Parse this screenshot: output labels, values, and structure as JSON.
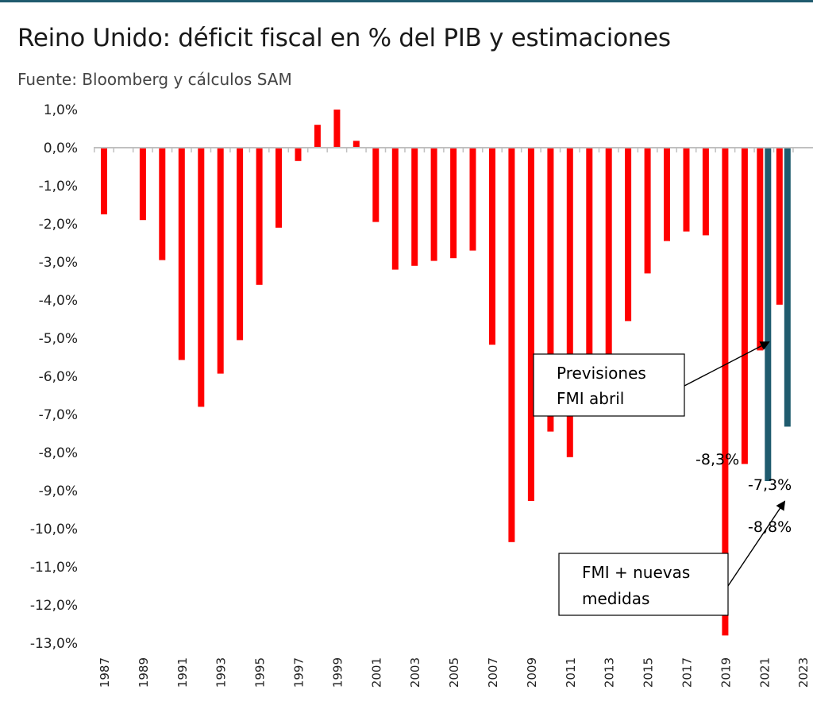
{
  "chart_data": {
    "type": "bar",
    "title": "Reino Unido: déficit fiscal en % del PIB y estimaciones",
    "subtitle": "Fuente: Bloomberg y cálculos SAM",
    "ylim": [
      -13.0,
      1.0
    ],
    "yticks": [
      "1,0%",
      "0,0%",
      "-1,0%",
      "-2,0%",
      "-3,0%",
      "-4,0%",
      "-5,0%",
      "-6,0%",
      "-7,0%",
      "-8,0%",
      "-9,0%",
      "-10,0%",
      "-11,0%",
      "-12,0%",
      "-13,0%"
    ],
    "grid": false,
    "categories": [
      "1987",
      "1988",
      "1989",
      "1990",
      "1991",
      "1992",
      "1993",
      "1994",
      "1995",
      "1996",
      "1997",
      "1998",
      "1999",
      "2000",
      "2001",
      "2002",
      "2003",
      "2004",
      "2005",
      "2006",
      "2007",
      "2008",
      "2009",
      "2010",
      "2011",
      "2012",
      "2013",
      "2014",
      "2015",
      "2016",
      "2017",
      "2018",
      "2019",
      "2020",
      "2021",
      "2022",
      "2023"
    ],
    "xtick_labels": [
      "1987",
      "",
      "1989",
      "",
      "1991",
      "",
      "1993",
      "",
      "1995",
      "",
      "1997",
      "",
      "1999",
      "",
      "2001",
      "",
      "2003",
      "",
      "2005",
      "",
      "2007",
      "",
      "2009",
      "",
      "2011",
      "",
      "2013",
      "",
      "2015",
      "",
      "2017",
      "",
      "2019",
      "",
      "2021",
      "",
      "2023"
    ],
    "series": [
      {
        "color": "#ff0000",
        "values": [
          -1.75,
          0.02,
          -1.9,
          -2.95,
          -5.57,
          -6.8,
          -5.93,
          -5.05,
          -3.6,
          -2.1,
          -0.35,
          0.6,
          1.0,
          0.18,
          -1.95,
          -3.2,
          -3.1,
          -2.97,
          -2.9,
          -2.7,
          -5.17,
          -10.35,
          -9.27,
          -7.45,
          -8.12,
          -5.57,
          -5.57,
          -4.55,
          -3.3,
          -2.45,
          -2.2,
          -2.3,
          -12.8,
          -8.3,
          -5.32,
          -4.12,
          null
        ]
      },
      {
        "color": "#1f5b6e",
        "values": [
          null,
          null,
          null,
          null,
          null,
          null,
          null,
          null,
          null,
          null,
          null,
          null,
          null,
          null,
          null,
          null,
          null,
          null,
          null,
          null,
          null,
          null,
          null,
          null,
          null,
          null,
          null,
          null,
          null,
          null,
          null,
          null,
          null,
          null,
          -8.75,
          -7.32,
          null
        ]
      }
    ],
    "data_labels": [
      "-8,3%",
      "-7,3%",
      "-8,8%"
    ],
    "annotations": [
      {
        "id": "previsiones",
        "lines": [
          "Previsiones",
          "FMI abril"
        ]
      },
      {
        "id": "fmi",
        "lines": [
          "FMI + nuevas",
          "medidas"
        ]
      }
    ]
  }
}
